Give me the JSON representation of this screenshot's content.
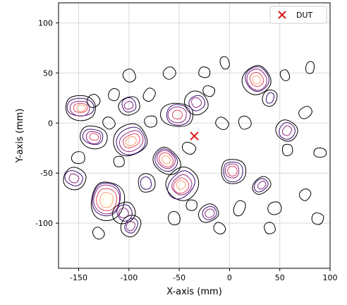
{
  "chart_data": {
    "type": "contour",
    "xlabel": "X-axis (mm)",
    "ylabel": "Y-axis (mm)",
    "xlim": [
      -170,
      100
    ],
    "ylim": [
      -145,
      120
    ],
    "x_ticks": [
      {
        "value": -150,
        "label": "-150"
      },
      {
        "value": -100,
        "label": "-100"
      },
      {
        "value": -50,
        "label": "-50"
      },
      {
        "value": 0,
        "label": "0"
      },
      {
        "value": 50,
        "label": "50"
      },
      {
        "value": 100,
        "label": "100"
      }
    ],
    "y_ticks": [
      {
        "value": 100,
        "label": "100"
      },
      {
        "value": 50,
        "label": "50"
      },
      {
        "value": 0,
        "label": "0"
      },
      {
        "value": -50,
        "label": "-50"
      },
      {
        "value": -100,
        "label": "-100"
      }
    ],
    "grid": true,
    "legend": {
      "position": "top-right",
      "entries": [
        "DUT"
      ]
    },
    "dut_marker": {
      "name": "DUT",
      "x": -35,
      "y": -13,
      "marker": "x",
      "color": "#d7191c"
    },
    "contour_colors": [
      "#000000",
      "#3b0f70",
      "#8c2981",
      "#de4968",
      "#fe9f6d",
      "#fcfdbf"
    ],
    "hotspots": [
      {
        "x": -148,
        "y": 15,
        "level": 5
      },
      {
        "x": -135,
        "y": 22,
        "level": 1
      },
      {
        "x": -115,
        "y": 28,
        "level": 1
      },
      {
        "x": -100,
        "y": 18,
        "level": 3
      },
      {
        "x": -80,
        "y": 28,
        "level": 1
      },
      {
        "x": -78,
        "y": 2,
        "level": 1
      },
      {
        "x": -120,
        "y": 0,
        "level": 1
      },
      {
        "x": -135,
        "y": -14,
        "level": 4
      },
      {
        "x": -98,
        "y": -18,
        "level": 5
      },
      {
        "x": -155,
        "y": -55,
        "level": 3
      },
      {
        "x": -110,
        "y": -38,
        "level": 1
      },
      {
        "x": -63,
        "y": -37,
        "level": 5
      },
      {
        "x": -52,
        "y": 8,
        "level": 4
      },
      {
        "x": -33,
        "y": 20,
        "level": 3
      },
      {
        "x": -20,
        "y": 32,
        "level": 1
      },
      {
        "x": -5,
        "y": 60,
        "level": 1
      },
      {
        "x": -8,
        "y": 0,
        "level": 1
      },
      {
        "x": 3,
        "y": -48,
        "level": 4
      },
      {
        "x": 27,
        "y": 43,
        "level": 5
      },
      {
        "x": 40,
        "y": 25,
        "level": 2
      },
      {
        "x": 15,
        "y": 0,
        "level": 1
      },
      {
        "x": 57,
        "y": -8,
        "level": 3
      },
      {
        "x": 57,
        "y": -27,
        "level": 1
      },
      {
        "x": 32,
        "y": -62,
        "level": 3
      },
      {
        "x": -122,
        "y": -77,
        "level": 6
      },
      {
        "x": -105,
        "y": -90,
        "level": 3
      },
      {
        "x": -98,
        "y": -103,
        "level": 3
      },
      {
        "x": -83,
        "y": -60,
        "level": 2
      },
      {
        "x": -48,
        "y": -62,
        "level": 5
      },
      {
        "x": -38,
        "y": -82,
        "level": 1
      },
      {
        "x": -20,
        "y": -90,
        "level": 3
      },
      {
        "x": 10,
        "y": -85,
        "level": 1
      },
      {
        "x": 45,
        "y": -85,
        "level": 1
      },
      {
        "x": 75,
        "y": -72,
        "level": 1
      },
      {
        "x": 90,
        "y": -30,
        "level": 1
      },
      {
        "x": 75,
        "y": 10,
        "level": 1
      },
      {
        "x": 88,
        "y": -95,
        "level": 1
      },
      {
        "x": 40,
        "y": -105,
        "level": 1
      },
      {
        "x": -10,
        "y": -105,
        "level": 1
      },
      {
        "x": -150,
        "y": -35,
        "level": 1
      },
      {
        "x": -60,
        "y": 50,
        "level": 1
      },
      {
        "x": -25,
        "y": 50,
        "level": 1
      },
      {
        "x": 55,
        "y": 48,
        "level": 1
      },
      {
        "x": -40,
        "y": -25,
        "level": 1
      },
      {
        "x": -55,
        "y": -95,
        "level": 1
      },
      {
        "x": -130,
        "y": -110,
        "level": 1
      },
      {
        "x": 80,
        "y": 55,
        "level": 1
      },
      {
        "x": -100,
        "y": 48,
        "level": 1
      }
    ]
  }
}
